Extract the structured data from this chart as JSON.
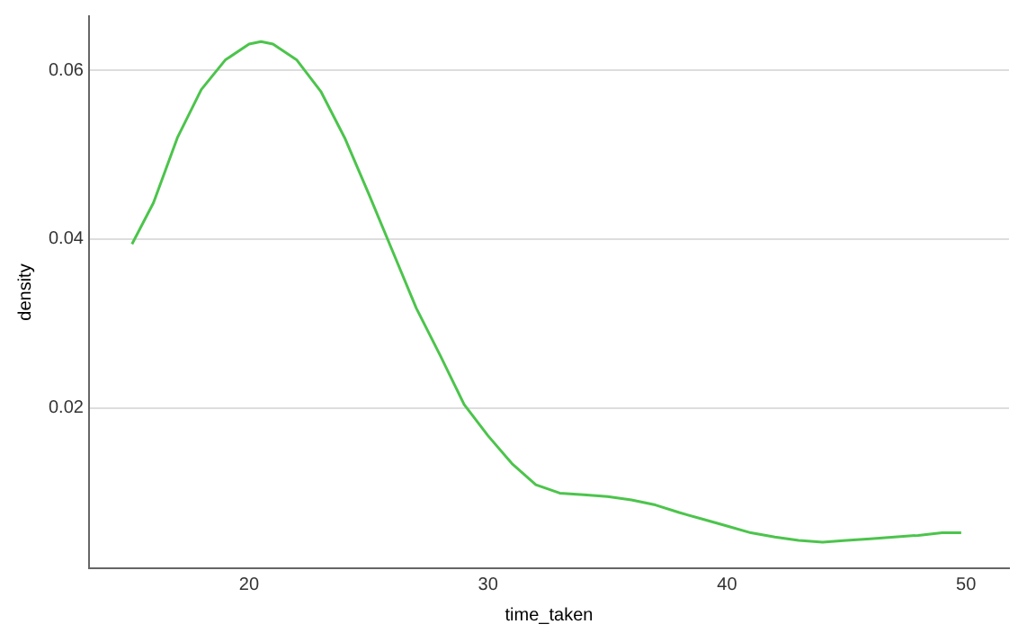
{
  "chart_data": {
    "type": "line",
    "xlabel": "time_taken",
    "ylabel": "density",
    "xlim": [
      13.3,
      51.8
    ],
    "xticks": [
      20,
      30,
      40,
      50
    ],
    "ylim": [
      0.001,
      0.0664
    ],
    "yticks": [
      0.02,
      0.04,
      0.06
    ],
    "grid": "y",
    "marker": "none",
    "line_style": "solid",
    "series": [
      {
        "color": "#4cc44c",
        "x": [
          15.1,
          16,
          17,
          18,
          19,
          20,
          20.5,
          21,
          22,
          23,
          24,
          25,
          26,
          27,
          28,
          29,
          30,
          31,
          32,
          33,
          34,
          35,
          36,
          37,
          38,
          39,
          40,
          41,
          42,
          43,
          44,
          45,
          46,
          47,
          48,
          49,
          49.8
        ],
        "values": [
          0.0394,
          0.0443,
          0.052,
          0.0577,
          0.0612,
          0.0631,
          0.0634,
          0.0631,
          0.0612,
          0.0575,
          0.052,
          0.0454,
          0.0386,
          0.0318,
          0.0262,
          0.0204,
          0.0167,
          0.0134,
          0.0109,
          0.0099,
          0.0097,
          0.0095,
          0.0091,
          0.0085,
          0.0076,
          0.0068,
          0.006,
          0.0052,
          0.0047,
          0.0043,
          0.0041,
          0.0043,
          0.0045,
          0.0047,
          0.0049,
          0.0052,
          0.0052
        ]
      }
    ]
  }
}
